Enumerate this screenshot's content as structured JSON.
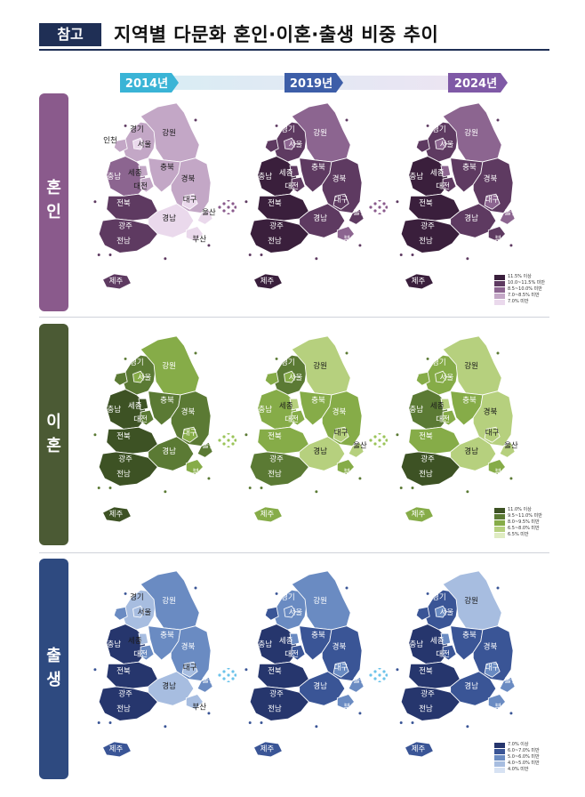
{
  "header": {
    "tag": "참고",
    "title": "지역별 다문화 혼인·이혼·출생 비중 추이"
  },
  "years": [
    "2014년",
    "2019년",
    "2024년"
  ],
  "regions": [
    "경기",
    "강원",
    "인천",
    "서울",
    "충북",
    "충남",
    "세종",
    "대전",
    "경북",
    "전북",
    "대구",
    "울산",
    "경남",
    "광주",
    "전남",
    "부산",
    "제주"
  ],
  "sections": [
    {
      "id": "marriage",
      "label": [
        "혼",
        "인"
      ],
      "color": "#8a5a8c",
      "legend": [
        "11.5% 이상",
        "10.0~11.5% 미만",
        "8.5~10.0% 미만",
        "7.0~8.5% 미만",
        "7.0% 미만"
      ],
      "legend_colors": [
        "#3a1f3c",
        "#5e3a61",
        "#8c6590",
        "#c3a7c6",
        "#ead9ec"
      ]
    },
    {
      "id": "divorce",
      "label": [
        "이",
        "혼"
      ],
      "color": "#4b5a34",
      "legend": [
        "11.0% 이상",
        "9.5~11.0% 미만",
        "8.0~9.5% 미만",
        "6.5~8.0% 미만",
        "6.5% 미만"
      ],
      "legend_colors": [
        "#3d5224",
        "#5b7a34",
        "#86ac48",
        "#b6d07e",
        "#dfecc2"
      ]
    },
    {
      "id": "birth",
      "label": [
        "출",
        "생"
      ],
      "color": "#2e4a80",
      "legend": [
        "7.0% 이상",
        "6.0~7.0% 미만",
        "5.0~6.0% 미만",
        "4.0~5.0% 미만",
        "4.0% 미만"
      ],
      "legend_colors": [
        "#26366d",
        "#3a5596",
        "#6a8bc2",
        "#a7bde0",
        "#d7e2f3"
      ]
    }
  ],
  "maps": {
    "marriage": [
      {
        "경기": 3,
        "강원": 3,
        "인천": 3,
        "서울": 4,
        "충북": 3,
        "충남": 2,
        "세종": 3,
        "대전": 3,
        "경북": 3,
        "전북": 1,
        "대구": 4,
        "울산": 4,
        "경남": 4,
        "광주": 2,
        "전남": 1,
        "부산": 4,
        "제주": 1
      },
      {
        "경기": 1,
        "강원": 2,
        "인천": 1,
        "서울": 2,
        "충북": 1,
        "충남": 0,
        "세종": 1,
        "대전": 1,
        "경북": 1,
        "전북": 0,
        "대구": 1,
        "울산": 1,
        "경남": 1,
        "광주": 1,
        "전남": 0,
        "부산": 2,
        "제주": 0
      },
      {
        "경기": 1,
        "강원": 2,
        "인천": 1,
        "서울": 2,
        "충북": 1,
        "충남": 0,
        "세종": 2,
        "대전": 1,
        "경북": 1,
        "전북": 0,
        "대구": 2,
        "울산": 2,
        "경남": 1,
        "광주": 1,
        "전남": 0,
        "부산": 1,
        "제주": 0
      }
    ],
    "divorce": [
      {
        "경기": 1,
        "강원": 2,
        "인천": 1,
        "서울": 2,
        "충북": 1,
        "충남": 0,
        "세종": 0,
        "대전": 1,
        "경북": 1,
        "전북": 0,
        "대구": 2,
        "울산": 1,
        "경남": 1,
        "광주": 1,
        "전남": 0,
        "부산": 2,
        "제주": 0
      },
      {
        "경기": 1,
        "강원": 3,
        "인천": 2,
        "서울": 2,
        "충북": 2,
        "충남": 2,
        "세종": 3,
        "대전": 2,
        "경북": 2,
        "전북": 2,
        "대구": 3,
        "울산": 3,
        "경남": 3,
        "광주": 1,
        "전남": 1,
        "부산": 2,
        "제주": 2
      },
      {
        "경기": 2,
        "강원": 3,
        "인천": 2,
        "서울": 2,
        "충북": 2,
        "충남": 1,
        "세종": 3,
        "대전": 2,
        "경북": 3,
        "전북": 2,
        "대구": 3,
        "울산": 3,
        "경남": 3,
        "광주": 1,
        "전남": 0,
        "부산": 2,
        "제주": 2
      }
    ],
    "birth": [
      {
        "경기": 3,
        "강원": 2,
        "인천": 2,
        "서울": 3,
        "충북": 2,
        "충남": 0,
        "세종": 3,
        "대전": 2,
        "경북": 2,
        "전북": 0,
        "대구": 3,
        "울산": 2,
        "경남": 3,
        "광주": 1,
        "전남": 0,
        "부산": 3,
        "제주": 1
      },
      {
        "경기": 2,
        "강원": 2,
        "인천": 1,
        "서울": 2,
        "충북": 1,
        "충남": 0,
        "세종": 2,
        "대전": 1,
        "경북": 1,
        "전북": 0,
        "대구": 2,
        "울산": 2,
        "경남": 1,
        "광주": 1,
        "전남": 0,
        "부산": 2,
        "제주": 1
      },
      {
        "경기": 1,
        "강원": 3,
        "인천": 1,
        "서울": 2,
        "충북": 1,
        "충남": 0,
        "세종": 2,
        "대전": 1,
        "경북": 1,
        "전북": 0,
        "대구": 2,
        "울산": 2,
        "경남": 1,
        "광주": 1,
        "전남": 0,
        "부산": 2,
        "제주": 1
      }
    ]
  }
}
